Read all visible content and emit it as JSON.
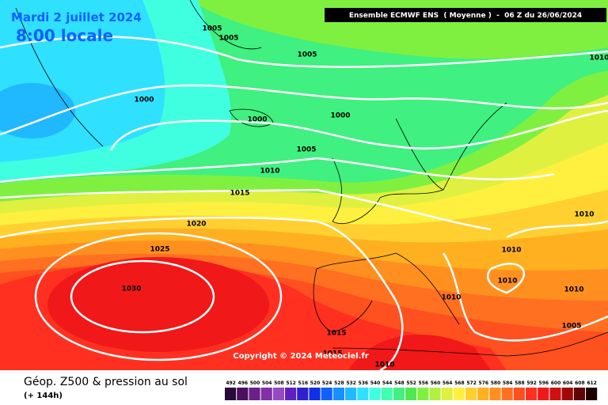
{
  "header": {
    "date": "Mardi 2 juillet 2024",
    "time": "8:00 locale",
    "model": "Ensemble ECMWF ENS  ( Moyenne )  -  06 Z du 26/06/2024"
  },
  "copyright": "Copyright © 2024 Meteociel.fr",
  "footer": {
    "title": "Géop. Z500 & pression au sol",
    "lead": "(+ 144h)"
  },
  "legend": {
    "values": [
      492,
      496,
      500,
      504,
      508,
      512,
      516,
      520,
      524,
      528,
      532,
      536,
      540,
      544,
      548,
      552,
      556,
      560,
      564,
      568,
      572,
      576,
      580,
      584,
      588,
      592,
      596,
      600,
      604,
      608,
      612
    ],
    "colors": [
      "#2a0a3a",
      "#4a1060",
      "#6a2088",
      "#8030a8",
      "#9848c0",
      "#6020c0",
      "#3020d0",
      "#1030e8",
      "#1060ff",
      "#1890ff",
      "#20b8ff",
      "#30e0ff",
      "#40ffe0",
      "#40ffb0",
      "#40f080",
      "#50e850",
      "#80f040",
      "#b0f040",
      "#e0f040",
      "#fff040",
      "#ffd030",
      "#ffb020",
      "#ff9020",
      "#ff7020",
      "#ff5020",
      "#ff3020",
      "#f01818",
      "#d01010",
      "#a00808",
      "#600404",
      "#200000"
    ]
  },
  "isobars": [
    1005,
    1005,
    1005,
    1010,
    1000,
    1000,
    1000,
    1005,
    1010,
    1015,
    1020,
    1025,
    1030,
    1010,
    1010,
    1010,
    1010,
    1010,
    1005,
    1015,
    1015,
    1010
  ]
}
